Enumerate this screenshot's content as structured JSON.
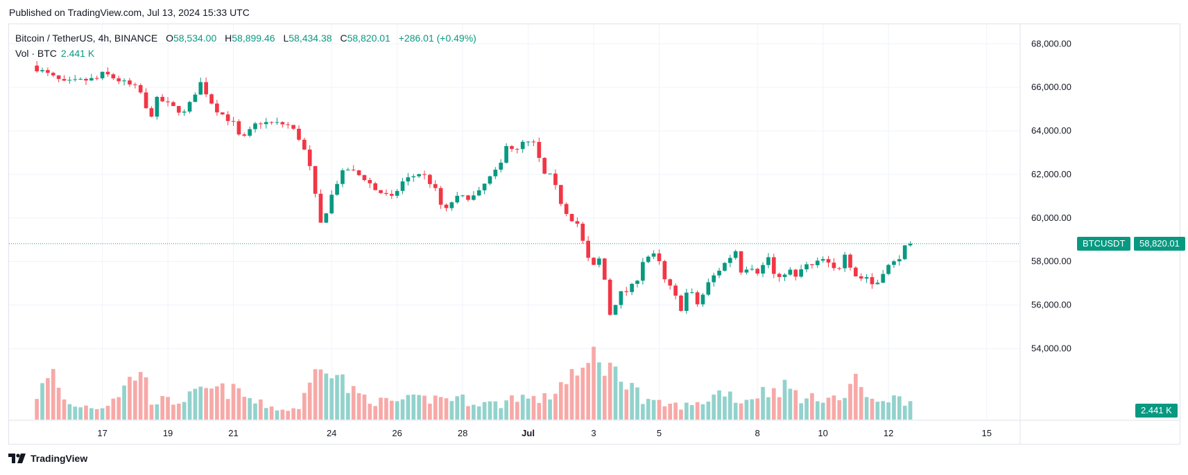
{
  "header": {
    "published": "Published on TradingView.com, Jul 13, 2024 15:33 UTC"
  },
  "legend": {
    "symbol": "Bitcoin / TetherUS, 4h, BINANCE",
    "open_label": "O",
    "open": "58,534.00",
    "high_label": "H",
    "high": "58,899.46",
    "low_label": "L",
    "low": "58,434.38",
    "close_label": "C",
    "close": "58,820.01",
    "change": "+286.01 (+0.49%)",
    "vol_label": "Vol · BTC",
    "vol_value": "2.441 K"
  },
  "tags": {
    "symbol": "BTCUSDT",
    "price": "58,820.01",
    "volume": "2.441 K"
  },
  "footer": {
    "brand": "TradingView"
  },
  "colors": {
    "up": "#089981",
    "down": "#f23645",
    "up_vol": "#92d2cc",
    "down_vol": "#f7a9a7",
    "grid": "#f0f3fa"
  },
  "chart_data": {
    "type": "candlestick",
    "interval": "4h",
    "y_ticks": [
      "68,000.00",
      "66,000.00",
      "64,000.00",
      "62,000.00",
      "60,000.00",
      "58,000.00",
      "56,000.00",
      "54,000.00"
    ],
    "y_tick_values": [
      68000,
      66000,
      64000,
      62000,
      60000,
      58000,
      56000,
      54000
    ],
    "ylim": [
      52200,
      68900
    ],
    "x_ticks": [
      {
        "label": "17",
        "day": 2
      },
      {
        "label": "19",
        "day": 4
      },
      {
        "label": "21",
        "day": 6
      },
      {
        "label": "24",
        "day": 9
      },
      {
        "label": "26",
        "day": 11
      },
      {
        "label": "28",
        "day": 13
      },
      {
        "label": "Jul",
        "day": 15
      },
      {
        "label": "3",
        "day": 17
      },
      {
        "label": "5",
        "day": 19
      },
      {
        "label": "8",
        "day": 22
      },
      {
        "label": "10",
        "day": 24
      },
      {
        "label": "12",
        "day": 26
      },
      {
        "label": "15",
        "day": 29
      }
    ],
    "xlim_days": [
      -0.85,
      30
    ],
    "last_price": 58820.01,
    "anchors": [
      [
        0,
        67000
      ],
      [
        1,
        66200
      ],
      [
        2,
        66400
      ],
      [
        2.2,
        66650
      ],
      [
        2.7,
        66300
      ],
      [
        3.3,
        65900
      ],
      [
        3.6,
        64500
      ],
      [
        3.85,
        65500
      ],
      [
        4.3,
        65100
      ],
      [
        4.7,
        64800
      ],
      [
        5.15,
        66250
      ],
      [
        5.6,
        65050
      ],
      [
        6.2,
        64300
      ],
      [
        6.4,
        63500
      ],
      [
        6.9,
        64400
      ],
      [
        7.8,
        64300
      ],
      [
        8.1,
        63900
      ],
      [
        8.45,
        62700
      ],
      [
        8.6,
        61500
      ],
      [
        8.85,
        59600
      ],
      [
        9.1,
        60800
      ],
      [
        9.35,
        61700
      ],
      [
        9.6,
        62300
      ],
      [
        10.2,
        61800
      ],
      [
        10.5,
        61300
      ],
      [
        11,
        60900
      ],
      [
        11.35,
        61700
      ],
      [
        11.9,
        62100
      ],
      [
        12.3,
        61400
      ],
      [
        12.6,
        60200
      ],
      [
        12.9,
        60900
      ],
      [
        13.6,
        61000
      ],
      [
        13.9,
        61700
      ],
      [
        14.3,
        62300
      ],
      [
        14.55,
        63700
      ],
      [
        14.75,
        62900
      ],
      [
        15,
        63450
      ],
      [
        15.4,
        63400
      ],
      [
        15.6,
        62000
      ],
      [
        15.9,
        61900
      ],
      [
        16.1,
        60900
      ],
      [
        16.4,
        60100
      ],
      [
        16.7,
        59700
      ],
      [
        16.95,
        58200
      ],
      [
        17.2,
        57700
      ],
      [
        17.4,
        58300
      ],
      [
        17.55,
        56600
      ],
      [
        17.7,
        55300
      ],
      [
        17.9,
        56500
      ],
      [
        18.15,
        56600
      ],
      [
        18.45,
        57000
      ],
      [
        18.7,
        58200
      ],
      [
        19.1,
        58300
      ],
      [
        19.3,
        57200
      ],
      [
        19.55,
        56700
      ],
      [
        19.85,
        55800
      ],
      [
        20.05,
        56800
      ],
      [
        20.35,
        56000
      ],
      [
        20.7,
        57100
      ],
      [
        21.1,
        57800
      ],
      [
        21.5,
        58500
      ],
      [
        21.7,
        57400
      ],
      [
        21.9,
        57900
      ],
      [
        22.2,
        57500
      ],
      [
        22.5,
        58200
      ],
      [
        22.75,
        57000
      ],
      [
        23.1,
        57700
      ],
      [
        23.35,
        57200
      ],
      [
        23.6,
        57900
      ],
      [
        23.75,
        57700
      ],
      [
        24.15,
        58100
      ],
      [
        24.6,
        57500
      ],
      [
        24.85,
        58500
      ],
      [
        25.05,
        57600
      ],
      [
        25.25,
        57200
      ],
      [
        25.5,
        57300
      ],
      [
        25.75,
        56800
      ],
      [
        26.05,
        57700
      ],
      [
        26.4,
        58000
      ],
      [
        26.7,
        58700
      ]
    ],
    "volume_ylim": [
      0,
      18000
    ],
    "volume_anchors": [
      [
        0,
        5000
      ],
      [
        0.5,
        9000
      ],
      [
        0.9,
        3000
      ],
      [
        2,
        2500
      ],
      [
        2.7,
        6500
      ],
      [
        3.15,
        10500
      ],
      [
        3.5,
        4000
      ],
      [
        4.2,
        3500
      ],
      [
        5.3,
        6000
      ],
      [
        6.2,
        5500
      ],
      [
        6.6,
        3500
      ],
      [
        7.6,
        1800
      ],
      [
        8.0,
        2500
      ],
      [
        8.4,
        7500
      ],
      [
        8.75,
        14500
      ],
      [
        8.95,
        11000
      ],
      [
        9.6,
        5500
      ],
      [
        10.5,
        3500
      ],
      [
        11.3,
        3800
      ],
      [
        12.6,
        4500
      ],
      [
        13.4,
        3500
      ],
      [
        14.2,
        3000
      ],
      [
        14.6,
        5000
      ],
      [
        15.1,
        4000
      ],
      [
        15.6,
        4200
      ],
      [
        16.3,
        9500
      ],
      [
        16.7,
        8000
      ],
      [
        16.95,
        13000
      ],
      [
        17.4,
        11500
      ],
      [
        17.7,
        8500
      ],
      [
        18.1,
        8500
      ],
      [
        18.5,
        3500
      ],
      [
        19.1,
        3000
      ],
      [
        19.6,
        2800
      ],
      [
        20.1,
        2800
      ],
      [
        21.0,
        6000
      ],
      [
        21.5,
        3500
      ],
      [
        22.1,
        5500
      ],
      [
        22.9,
        6500
      ],
      [
        23.5,
        3800
      ],
      [
        24.15,
        5000
      ],
      [
        24.7,
        3500
      ],
      [
        24.95,
        11000
      ],
      [
        25.3,
        3500
      ],
      [
        25.9,
        4500
      ],
      [
        26.7,
        3600
      ]
    ]
  }
}
